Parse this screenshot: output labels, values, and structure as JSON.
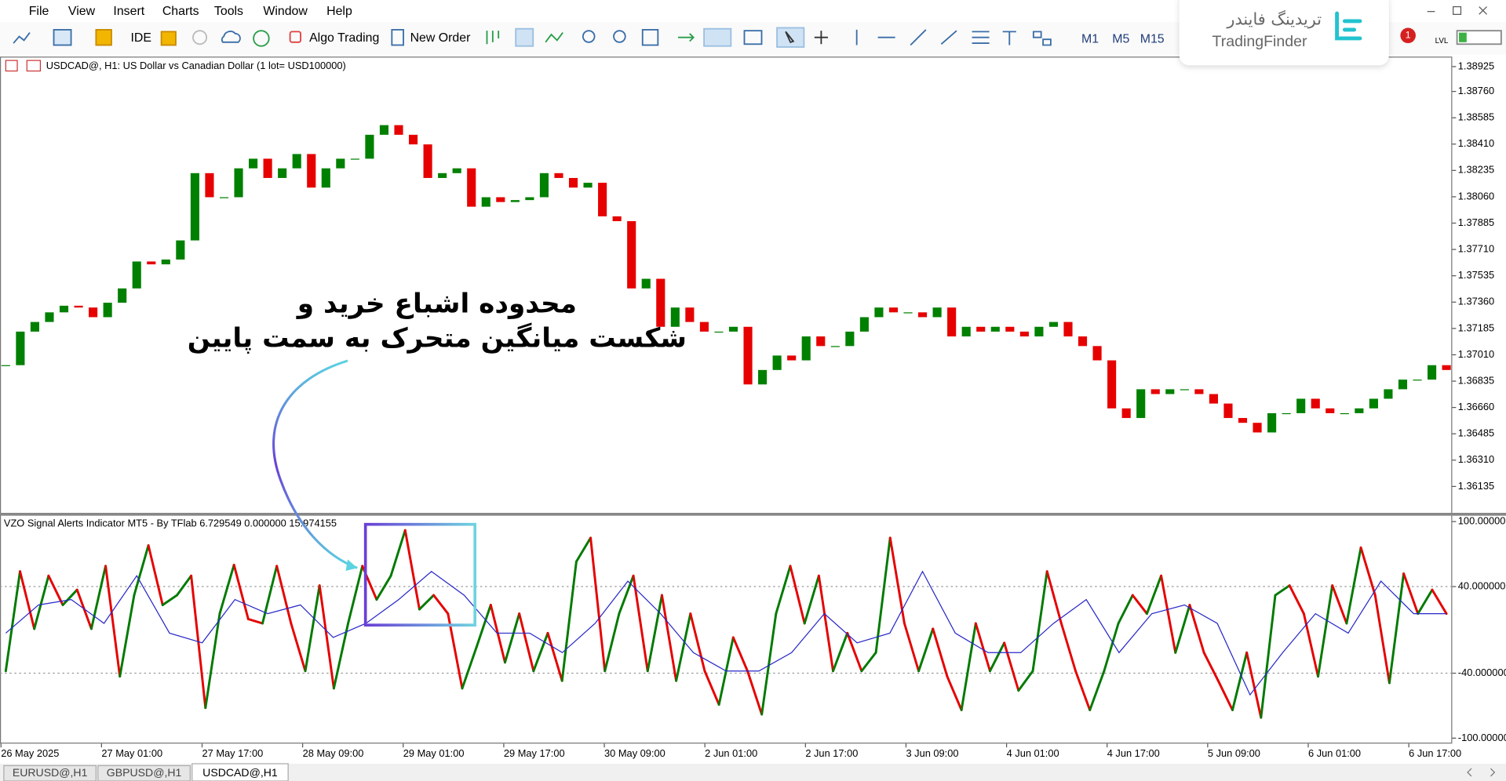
{
  "menu": [
    "File",
    "View",
    "Insert",
    "Charts",
    "Tools",
    "Window",
    "Help"
  ],
  "toolbar": {
    "buttons": [
      "IDE",
      "Algo Trading",
      "New Order"
    ],
    "timeframes": [
      "M1",
      "M5",
      "M15"
    ],
    "notifications": 1
  },
  "watermark": {
    "fa": "تریدینگ فایندر",
    "en": "TradingFinder"
  },
  "annotation": [
    "محدوده اشباع خرید و",
    "شکست میانگین متحرک به سمت پایین"
  ],
  "time_axis": [
    "26 May 2025",
    "27 May 01:00",
    "27 May 17:00",
    "28 May 09:00",
    "29 May 01:00",
    "29 May 17:00",
    "30 May 09:00",
    "2 Jun 01:00",
    "2 Jun 17:00",
    "3 Jun 09:00",
    "4 Jun 01:00",
    "4 Jun 17:00",
    "5 Jun 09:00",
    "6 Jun 01:00",
    "6 Jun 17:00"
  ],
  "tabs": [
    "EURUSD@,H1",
    "GBPUSD@,H1",
    "USDCAD@,H1"
  ],
  "chart_data": [
    {
      "type": "candlestick",
      "title": "USDCAD@, H1:  US Dollar vs Canadian Dollar  (1 lot= USD100000)",
      "up_color": "#008000",
      "down_color": "#e60000",
      "values": [
        1.36941,
        1.37164,
        1.37228,
        1.37292,
        1.37336,
        1.37324,
        1.3726,
        1.37356,
        1.37451,
        1.3763,
        1.37611,
        1.37643,
        1.3777,
        1.38217,
        1.38057,
        1.38057,
        1.38249,
        1.38313,
        1.38185,
        1.38249,
        1.38344,
        1.38121,
        1.38249,
        1.38313,
        1.38313,
        1.38472,
        1.38536,
        1.38472,
        1.38408,
        1.38185,
        1.38217,
        1.38249,
        1.37994,
        1.38057,
        1.38025,
        1.38038,
        1.38057,
        1.38217,
        1.38185,
        1.38121,
        1.38153,
        1.3793,
        1.37898,
        1.37451,
        1.37515,
        1.37196,
        1.37324,
        1.37228,
        1.37164,
        1.37164,
        1.37196,
        1.36813,
        1.36909,
        1.37005,
        1.36973,
        1.37132,
        1.37068,
        1.37068,
        1.37164,
        1.3726,
        1.37324,
        1.37292,
        1.37292,
        1.3726,
        1.37324,
        1.37132,
        1.37196,
        1.37164,
        1.37196,
        1.37164,
        1.37132,
        1.37196,
        1.37228,
        1.37132,
        1.37068,
        1.36973,
        1.36654,
        1.3659,
        1.36781,
        1.36749,
        1.36781,
        1.36781,
        1.36749,
        1.36686,
        1.3659,
        1.36558,
        1.36494,
        1.36622,
        1.36622,
        1.36718,
        1.36654,
        1.36622,
        1.36622,
        1.36654,
        1.36718,
        1.36781,
        1.36845,
        1.36845,
        1.36941,
        1.36909
      ],
      "ylim": [
        1.35963,
        1.38985
      ],
      "yticks": [
        1.38925,
        {
          "value": 1.3876,
          "label": "1.38760"
        },
        1.38585,
        {
          "value": 1.3841,
          "label": "1.38410"
        },
        1.38235,
        {
          "value": 1.3806,
          "label": "1.38060"
        },
        1.37885,
        {
          "value": 1.3771,
          "label": "1.37710"
        },
        1.37535,
        {
          "value": 1.3736,
          "label": "1.37360"
        },
        1.37185,
        {
          "value": 1.3701,
          "label": "1.37010"
        },
        1.36835,
        {
          "value": 1.3666,
          "label": "1.36660"
        },
        1.36485,
        {
          "value": 1.3631,
          "label": "1.36310"
        },
        1.36135
      ]
    },
    {
      "type": "line",
      "title": "VZO Signal Alerts Indicator MT5 - By TFlab 6.729549 0.000000 15.974155",
      "series": [
        {
          "color": "#007a00",
          "down_color": "#e60000",
          "values": [
            -38,
            54,
            1,
            50,
            23,
            37,
            1,
            59,
            -43,
            32,
            78,
            23,
            32,
            50,
            -72,
            15,
            60,
            10,
            6,
            59,
            6,
            -38,
            41,
            -54,
            6,
            59,
            28,
            50,
            92,
            19,
            32,
            15,
            -54,
            -16,
            23,
            -30,
            15,
            -38,
            -3,
            -47,
            63,
            85,
            -38,
            15,
            50,
            -38,
            32,
            -47,
            15,
            -38,
            -69,
            -7,
            -38,
            -78,
            15,
            59,
            6,
            50,
            -38,
            -3,
            -38,
            -21,
            85,
            6,
            -38,
            1,
            -43,
            -74,
            6,
            -38,
            -12,
            -56,
            -38,
            54,
            6,
            -38,
            -74,
            -38,
            6,
            32,
            15,
            50,
            -21,
            23,
            -21,
            -47,
            -74,
            -21,
            -81,
            32,
            41,
            15,
            -43,
            41,
            6,
            76,
            32,
            -49,
            52,
            15,
            37,
            15
          ]
        },
        {
          "color": "#2727c8",
          "values": [
            -3,
            23,
            28,
            6,
            50,
            -3,
            -12,
            28,
            15,
            23,
            -7,
            6,
            28,
            54,
            32,
            -3,
            -3,
            -21,
            6,
            45,
            15,
            -21,
            -38,
            -38,
            -21,
            15,
            -12,
            -3,
            54,
            -3,
            -21,
            -21,
            6,
            28,
            -21,
            15,
            23,
            6,
            -60,
            -21,
            15,
            -3,
            45,
            15,
            15
          ]
        }
      ],
      "levels": [
        40,
        -40
      ],
      "ylim": [
        -105,
        105
      ],
      "yticks": [
        {
          "value": 100,
          "label": "100.000000"
        },
        {
          "value": 40,
          "label": "40.000000"
        },
        {
          "value": -40,
          "label": "-40.000000"
        },
        {
          "value": -100,
          "label": "-100.000000"
        }
      ]
    }
  ]
}
